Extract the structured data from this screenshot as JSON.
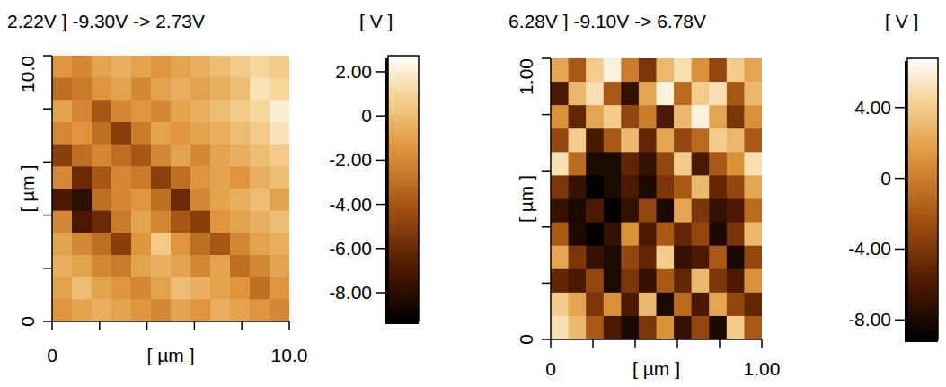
{
  "chart_data": [
    {
      "type": "heatmap",
      "title": "2.22V ] -9.30V  -> 2.73V",
      "x_label": "[ µm ]",
      "y_label": "[ µm ]",
      "xlim": [
        0,
        10
      ],
      "ylim": [
        0,
        10
      ],
      "xticks": [
        0,
        {
          "value": 2,
          "label": null
        },
        {
          "value": 4,
          "label": null
        },
        {
          "value": 6,
          "label": null
        },
        {
          "value": 8,
          "label": null
        },
        {
          "value": 10,
          "label": "10.0"
        }
      ],
      "yticks": [
        0,
        {
          "value": 2,
          "label": null
        },
        {
          "value": 4,
          "label": null
        },
        {
          "value": 6,
          "label": null
        },
        {
          "value": 8,
          "label": null
        },
        {
          "value": 10,
          "label": "10.0"
        }
      ],
      "colorbar": {
        "label": "[ V ]",
        "range": [
          -9.3,
          2.73
        ],
        "ticks": [
          {
            "value": 2,
            "label": "2.00"
          },
          0,
          {
            "value": -2,
            "label": "-2.00"
          },
          {
            "value": -4,
            "label": "-4.00"
          },
          {
            "value": -6,
            "label": "-6.00"
          },
          {
            "value": -8,
            "label": "-8.00"
          }
        ]
      },
      "cells": [
        [
          -1.5,
          -2,
          -1,
          -0.5,
          -1,
          -1.5,
          -1,
          -0.5,
          0,
          0.5,
          1,
          0.5
        ],
        [
          -3,
          -2.5,
          -1.5,
          -1,
          -2,
          -1,
          -0.5,
          -1,
          -0.5,
          0,
          1.5,
          1
        ],
        [
          -1,
          -2,
          -4,
          -2,
          -1.5,
          -2,
          -1,
          -0.5,
          0,
          0.5,
          1,
          2
        ],
        [
          -2,
          -1.5,
          -3,
          -5,
          -2.5,
          -1,
          -1.5,
          -1,
          -0.5,
          0,
          0.5,
          1.5
        ],
        [
          -5,
          -3,
          -2,
          -3,
          -4,
          -2,
          -1,
          -2,
          -1,
          -0.5,
          0,
          0.5
        ],
        [
          -2,
          -6,
          -4,
          -2,
          -2.5,
          -5,
          -3,
          -1.5,
          -1,
          -1.5,
          -0.5,
          0
        ],
        [
          -7,
          -8,
          -3,
          -2,
          -1.5,
          -3,
          -6,
          -2,
          -1,
          -0.5,
          0,
          -1
        ],
        [
          -2,
          -7,
          -6,
          -2.5,
          -1,
          -2,
          -4,
          -5,
          -1.5,
          -1,
          -0.5,
          0
        ],
        [
          -1,
          -2,
          -3,
          -5,
          -1.5,
          0.5,
          -1.5,
          -3,
          -4,
          -2,
          -1,
          -0.5
        ],
        [
          -0.5,
          -1,
          -2,
          -2.5,
          -1,
          -0.5,
          -1,
          -2,
          -1,
          -3,
          -2,
          -1
        ],
        [
          -1,
          0,
          -1,
          -1.5,
          -2,
          -1,
          0,
          -0.5,
          -1,
          -1.5,
          -3,
          -1.5
        ],
        [
          -1.5,
          -1,
          -0.5,
          -1,
          -1.5,
          -2,
          -1,
          -1.5,
          -0.5,
          -1,
          -1.5,
          -2
        ]
      ]
    },
    {
      "type": "heatmap",
      "title": "6.28V ] -9.10V  -> 6.78V",
      "x_label": "[ µm ]",
      "y_label": "[ µm ]",
      "xlim": [
        0,
        1
      ],
      "ylim": [
        0,
        1
      ],
      "xticks": [
        0,
        {
          "value": 0.2,
          "label": null
        },
        {
          "value": 0.4,
          "label": null
        },
        {
          "value": 0.6,
          "label": null
        },
        {
          "value": 0.8,
          "label": null
        },
        {
          "value": 1,
          "label": "1.00"
        }
      ],
      "yticks": [
        0,
        {
          "value": 0.2,
          "label": null
        },
        {
          "value": 0.4,
          "label": null
        },
        {
          "value": 0.6,
          "label": null
        },
        {
          "value": 0.8,
          "label": null
        },
        {
          "value": 1,
          "label": "1.00"
        }
      ],
      "colorbar": {
        "label": "[ V ]",
        "range": [
          -9.1,
          6.78
        ],
        "ticks": [
          {
            "value": 4,
            "label": "4.00"
          },
          0,
          {
            "value": -4,
            "label": "-4.00"
          },
          {
            "value": -8,
            "label": "-8.00"
          }
        ]
      },
      "cells": [
        [
          2,
          -2,
          4,
          6,
          0,
          -4,
          3,
          5,
          1,
          -3,
          4,
          2
        ],
        [
          -6,
          3,
          5,
          -2,
          -7,
          2,
          6,
          -1,
          4,
          5,
          -2,
          3
        ],
        [
          1,
          -5,
          2,
          4,
          -3,
          0,
          -6,
          3,
          6,
          2,
          -4,
          1
        ],
        [
          -3,
          4,
          -6,
          -2,
          3,
          -5,
          2,
          -3,
          -1,
          4,
          3,
          -2
        ],
        [
          5,
          -1,
          -8,
          -8,
          -5,
          -7,
          -3,
          4,
          -6,
          -2,
          1,
          5
        ],
        [
          -4,
          -7,
          -9,
          -8,
          -6,
          -8,
          -4,
          -2,
          3,
          -5,
          -3,
          2
        ],
        [
          -7,
          -8,
          -6,
          -9,
          -7,
          -3,
          -8,
          2,
          -4,
          -7,
          -6,
          -1
        ],
        [
          -2,
          -8,
          -9,
          -7,
          1,
          -6,
          -2,
          -5,
          -3,
          -8,
          -4,
          3
        ],
        [
          2,
          -4,
          -7,
          -8,
          -3,
          -5,
          4,
          -7,
          -6,
          -2,
          -8,
          -3
        ],
        [
          -5,
          -6,
          -3,
          -8,
          -4,
          -7,
          -2,
          -5,
          3,
          -4,
          -6,
          1
        ],
        [
          4,
          2,
          -4,
          1,
          -6,
          3,
          -8,
          -1,
          -6,
          2,
          -3,
          -5
        ],
        [
          5,
          3,
          -2,
          -6,
          -8,
          -4,
          1,
          -7,
          -3,
          -8,
          4,
          -2
        ]
      ]
    }
  ]
}
